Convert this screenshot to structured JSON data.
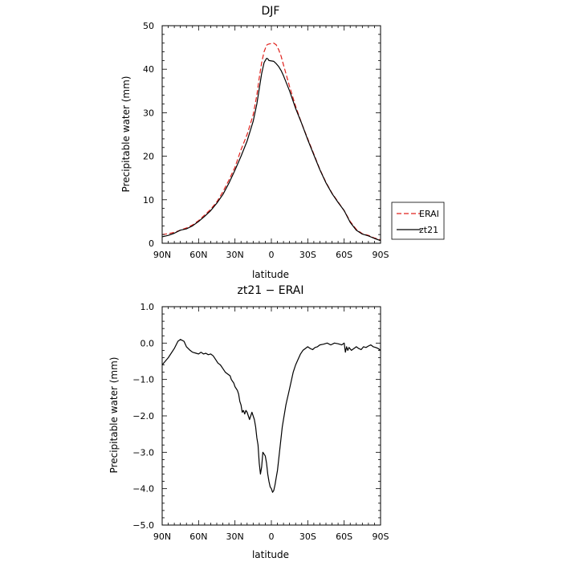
{
  "chart_data": [
    {
      "type": "line",
      "title": "DJF",
      "xlabel": "latitude",
      "ylabel": "Precipitable water (mm)",
      "xlim": [
        90,
        -90
      ],
      "ylim": [
        0,
        50
      ],
      "x_ticks": [
        90,
        60,
        30,
        0,
        -30,
        -60,
        -90
      ],
      "x_tick_labels": [
        "90N",
        "60N",
        "30N",
        "0",
        "30S",
        "60S",
        "90S"
      ],
      "y_ticks": [
        0,
        10,
        20,
        30,
        40,
        50
      ],
      "y_tick_labels": [
        "0",
        "10",
        "20",
        "30",
        "40",
        "50"
      ],
      "grid": false,
      "legend_position": "right-outside",
      "series": [
        {
          "name": "ERAI",
          "color": "#e0201b",
          "dash": "dashed",
          "x": [
            90,
            85,
            80,
            75,
            70,
            65,
            60,
            55,
            50,
            45,
            40,
            35,
            30,
            25,
            20,
            15,
            12,
            10,
            8,
            6,
            4,
            3,
            2,
            0,
            -2,
            -4,
            -6,
            -8,
            -10,
            -15,
            -20,
            -25,
            -30,
            -35,
            -40,
            -45,
            -50,
            -55,
            -60,
            -65,
            -70,
            -75,
            -80,
            -85,
            -90
          ],
          "y": [
            2.0,
            2.2,
            2.5,
            3.0,
            3.5,
            4.2,
            5.2,
            6.5,
            7.8,
            9.5,
            11.8,
            14.5,
            17.5,
            21.5,
            25.0,
            29.5,
            34.0,
            38.0,
            41.5,
            44.0,
            45.5,
            45.7,
            45.8,
            45.9,
            46.0,
            45.6,
            44.5,
            43.0,
            41.0,
            36.0,
            31.5,
            27.5,
            24.0,
            20.5,
            17.0,
            14.0,
            11.5,
            9.5,
            7.5,
            5.0,
            3.2,
            2.2,
            1.8,
            1.2,
            0.8
          ]
        },
        {
          "name": "zt21",
          "color": "#000000",
          "dash": "solid",
          "x": [
            90,
            85,
            80,
            75,
            70,
            65,
            60,
            55,
            50,
            45,
            40,
            35,
            30,
            25,
            20,
            15,
            12,
            10,
            8,
            6,
            4,
            3,
            2,
            0,
            -2,
            -4,
            -6,
            -8,
            -10,
            -15,
            -20,
            -25,
            -30,
            -35,
            -40,
            -45,
            -50,
            -55,
            -60,
            -65,
            -70,
            -75,
            -80,
            -85,
            -90
          ],
          "y": [
            1.5,
            1.8,
            2.3,
            3.0,
            3.3,
            4.0,
            5.0,
            6.2,
            7.5,
            9.2,
            11.2,
            13.8,
            16.8,
            20.0,
            23.5,
            28.0,
            32.0,
            35.5,
            39.0,
            41.5,
            42.5,
            42.4,
            42.0,
            41.9,
            41.8,
            41.3,
            40.6,
            39.7,
            38.5,
            35.0,
            31.0,
            27.5,
            23.8,
            20.3,
            16.9,
            13.9,
            11.4,
            9.4,
            7.5,
            4.8,
            3.0,
            2.1,
            1.7,
            1.1,
            0.6
          ]
        }
      ]
    },
    {
      "type": "line",
      "title": "zt21 − ERAI",
      "xlabel": "latitude",
      "ylabel": "Precipitable water (mm)",
      "xlim": [
        90,
        -90
      ],
      "ylim": [
        -5.0,
        1.0
      ],
      "x_ticks": [
        90,
        60,
        30,
        0,
        -30,
        -60,
        -90
      ],
      "x_tick_labels": [
        "90N",
        "60N",
        "30N",
        "0",
        "30S",
        "60S",
        "90S"
      ],
      "y_ticks": [
        1.0,
        0.0,
        -1.0,
        -2.0,
        -3.0,
        -4.0,
        -5.0
      ],
      "y_tick_labels": [
        "1.0",
        "0.0",
        "−1.0",
        "−2.0",
        "−3.0",
        "−4.0",
        "−5.0"
      ],
      "grid": false,
      "series": [
        {
          "color": "#000000",
          "dash": "solid",
          "x": [
            90,
            85,
            80,
            77,
            75,
            72,
            70,
            67,
            65,
            62,
            60,
            58,
            56,
            54,
            52,
            50,
            48,
            46,
            44,
            42,
            40,
            38,
            36,
            34,
            33,
            32,
            31,
            30,
            29,
            28,
            27,
            26,
            25,
            24,
            23,
            22,
            21,
            20,
            19,
            18,
            17,
            16,
            15,
            14,
            13,
            12,
            11,
            10,
            9,
            8,
            7,
            6,
            5,
            4,
            3,
            2,
            1,
            0,
            -1,
            -2,
            -3,
            -4,
            -5,
            -6,
            -7,
            -8,
            -9,
            -10,
            -11,
            -12,
            -13,
            -14,
            -15,
            -16,
            -17,
            -18,
            -19,
            -20,
            -22,
            -24,
            -26,
            -28,
            -30,
            -32,
            -34,
            -36,
            -38,
            -40,
            -43,
            -46,
            -49,
            -52,
            -55,
            -58,
            -60,
            -61,
            -62,
            -63,
            -64,
            -66,
            -68,
            -70,
            -72,
            -74,
            -76,
            -78,
            -80,
            -82,
            -84,
            -86,
            -88,
            -90
          ],
          "y": [
            -0.6,
            -0.4,
            -0.15,
            0.05,
            0.1,
            0.05,
            -0.1,
            -0.2,
            -0.25,
            -0.28,
            -0.3,
            -0.25,
            -0.3,
            -0.28,
            -0.32,
            -0.3,
            -0.35,
            -0.45,
            -0.55,
            -0.6,
            -0.7,
            -0.8,
            -0.85,
            -0.9,
            -1.0,
            -1.05,
            -1.1,
            -1.2,
            -1.25,
            -1.3,
            -1.4,
            -1.6,
            -1.7,
            -1.9,
            -1.85,
            -1.95,
            -1.85,
            -1.9,
            -2.0,
            -2.1,
            -2.0,
            -1.9,
            -2.0,
            -2.1,
            -2.3,
            -2.6,
            -2.8,
            -3.3,
            -3.6,
            -3.4,
            -3.0,
            -3.05,
            -3.1,
            -3.3,
            -3.6,
            -3.8,
            -3.95,
            -4.0,
            -4.1,
            -4.05,
            -3.9,
            -3.7,
            -3.5,
            -3.2,
            -2.9,
            -2.6,
            -2.3,
            -2.1,
            -1.9,
            -1.7,
            -1.55,
            -1.4,
            -1.25,
            -1.1,
            -0.95,
            -0.8,
            -0.7,
            -0.6,
            -0.45,
            -0.3,
            -0.2,
            -0.15,
            -0.1,
            -0.15,
            -0.18,
            -0.12,
            -0.1,
            -0.05,
            -0.03,
            0.0,
            -0.05,
            0.0,
            -0.02,
            -0.05,
            0.0,
            -0.25,
            -0.1,
            -0.2,
            -0.12,
            -0.2,
            -0.15,
            -0.1,
            -0.15,
            -0.18,
            -0.1,
            -0.12,
            -0.08,
            -0.05,
            -0.1,
            -0.12,
            -0.15,
            -0.2
          ]
        }
      ]
    }
  ]
}
